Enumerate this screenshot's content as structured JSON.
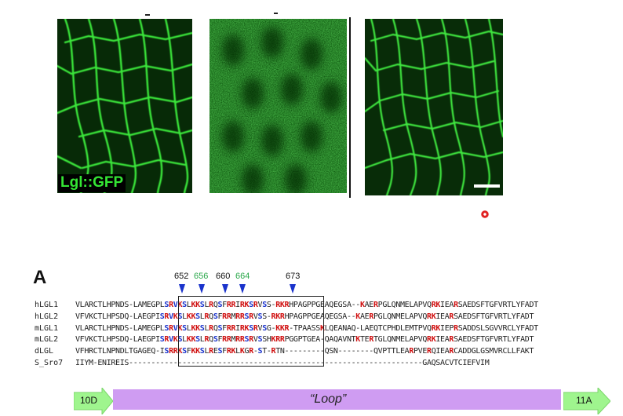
{
  "figure": {
    "panel_label": "Lgl::GFP",
    "section_letter": "A",
    "colors": {
      "gfp": "#30d030",
      "red_residue": "#d01010",
      "blue_residue": "#1a33cc",
      "green_number": "#2aa84a",
      "loop_fill": "#cf9cf2",
      "strand_fill": "#9ff58e"
    }
  },
  "site_numbers": [
    {
      "text": "652",
      "color": "black"
    },
    {
      "text": "656",
      "color": "green"
    },
    {
      "text": "660",
      "color": "black"
    },
    {
      "text": "664",
      "color": "green"
    },
    {
      "text": "673",
      "color": "black"
    }
  ],
  "alignment": [
    {
      "name": "hLGL1",
      "segments": [
        [
          "n",
          "VLARCTLHPNDS-LAMEGPL"
        ],
        [
          "b",
          "S"
        ],
        [
          "r",
          "R"
        ],
        [
          "b",
          "V"
        ],
        [
          "r",
          "K"
        ],
        [
          "b",
          "S"
        ],
        [
          "n",
          "L"
        ],
        [
          "r",
          "KK"
        ],
        [
          "b",
          "S"
        ],
        [
          "n",
          "L"
        ],
        [
          "r",
          "R"
        ],
        [
          "n",
          "Q"
        ],
        [
          "b",
          "S"
        ],
        [
          "n",
          "F"
        ],
        [
          "r",
          "RR"
        ],
        [
          "n",
          "I"
        ],
        [
          "r",
          "RK"
        ],
        [
          "b",
          "S"
        ],
        [
          "r",
          "R"
        ],
        [
          "n",
          "V"
        ],
        [
          "b",
          "S"
        ],
        [
          "n",
          "S-"
        ],
        [
          "r",
          "RKR"
        ],
        [
          "n",
          "HPAGPPGEAQEGSA--"
        ],
        [
          "r",
          "K"
        ],
        [
          "n",
          "AE"
        ],
        [
          "r",
          "R"
        ],
        [
          "n",
          "PGLQNMELAPVQ"
        ],
        [
          "r",
          "RK"
        ],
        [
          "n",
          "IEA"
        ],
        [
          "r",
          "R"
        ],
        [
          "n",
          "SAEDSFTGFVRTLYFADT"
        ]
      ]
    },
    {
      "name": "hLGL2",
      "segments": [
        [
          "n",
          "VFVKCTLHPSDQ-LAEGPI"
        ],
        [
          "b",
          "S"
        ],
        [
          "r",
          "R"
        ],
        [
          "b",
          "V"
        ],
        [
          "r",
          "K"
        ],
        [
          "b",
          "S"
        ],
        [
          "n",
          "L"
        ],
        [
          "r",
          "KK"
        ],
        [
          "b",
          "S"
        ],
        [
          "n",
          "L"
        ],
        [
          "r",
          "R"
        ],
        [
          "n",
          "Q"
        ],
        [
          "b",
          "S"
        ],
        [
          "n",
          "F"
        ],
        [
          "r",
          "RR"
        ],
        [
          "n",
          "M"
        ],
        [
          "r",
          "RR"
        ],
        [
          "b",
          "S"
        ],
        [
          "r",
          "R"
        ],
        [
          "n",
          "V"
        ],
        [
          "b",
          "S"
        ],
        [
          "n",
          "S-"
        ],
        [
          "r",
          "RKR"
        ],
        [
          "n",
          "HPAGPPGEAQEGSA--"
        ],
        [
          "r",
          "K"
        ],
        [
          "n",
          "AE"
        ],
        [
          "r",
          "R"
        ],
        [
          "n",
          "PGLQNMELAPVQ"
        ],
        [
          "r",
          "RK"
        ],
        [
          "n",
          "IEA"
        ],
        [
          "r",
          "R"
        ],
        [
          "n",
          "SAEDSFTGFVRTLYFADT"
        ]
      ]
    },
    {
      "name": "mLGL1",
      "segments": [
        [
          "n",
          "VLARCTLHPNDS-LAMEGPL"
        ],
        [
          "b",
          "S"
        ],
        [
          "r",
          "R"
        ],
        [
          "b",
          "V"
        ],
        [
          "r",
          "K"
        ],
        [
          "b",
          "S"
        ],
        [
          "n",
          "L"
        ],
        [
          "r",
          "KK"
        ],
        [
          "b",
          "S"
        ],
        [
          "n",
          "L"
        ],
        [
          "r",
          "R"
        ],
        [
          "n",
          "Q"
        ],
        [
          "b",
          "S"
        ],
        [
          "n",
          "F"
        ],
        [
          "r",
          "RR"
        ],
        [
          "n",
          "I"
        ],
        [
          "r",
          "RK"
        ],
        [
          "b",
          "S"
        ],
        [
          "r",
          "R"
        ],
        [
          "n",
          "V"
        ],
        [
          "b",
          "S"
        ],
        [
          "n",
          "G-"
        ],
        [
          "r",
          "KKR"
        ],
        [
          "n",
          "-TPAASS"
        ],
        [
          "r",
          "K"
        ],
        [
          "n",
          "LQEANAQ-LAEQTCPHDLEMTPVQ"
        ],
        [
          "r",
          "RK"
        ],
        [
          "n",
          "IEP"
        ],
        [
          "r",
          "R"
        ],
        [
          "n",
          "SADDSLSGVVRCLYFADT"
        ]
      ]
    },
    {
      "name": "mLGL2",
      "segments": [
        [
          "n",
          "VFVKCTLHPSDQ-LAEGPI"
        ],
        [
          "b",
          "S"
        ],
        [
          "r",
          "R"
        ],
        [
          "b",
          "V"
        ],
        [
          "r",
          "K"
        ],
        [
          "b",
          "S"
        ],
        [
          "n",
          "L"
        ],
        [
          "r",
          "KK"
        ],
        [
          "b",
          "S"
        ],
        [
          "n",
          "L"
        ],
        [
          "r",
          "R"
        ],
        [
          "n",
          "Q"
        ],
        [
          "b",
          "S"
        ],
        [
          "n",
          "F"
        ],
        [
          "r",
          "RR"
        ],
        [
          "n",
          "M"
        ],
        [
          "r",
          "RR"
        ],
        [
          "b",
          "S"
        ],
        [
          "r",
          "R"
        ],
        [
          "n",
          "V"
        ],
        [
          "b",
          "S"
        ],
        [
          "n",
          "SH"
        ],
        [
          "r",
          "KRR"
        ],
        [
          "n",
          "PGGPTGEA-QAQAVNT"
        ],
        [
          "r",
          "K"
        ],
        [
          "n",
          "TE"
        ],
        [
          "r",
          "R"
        ],
        [
          "n",
          "TGLQNMELAPVQ"
        ],
        [
          "r",
          "RK"
        ],
        [
          "n",
          "IEA"
        ],
        [
          "r",
          "R"
        ],
        [
          "n",
          "SAEDSFTGFVRTLYFADT"
        ]
      ]
    },
    {
      "name": "dLGL",
      "segments": [
        [
          "n",
          "VFHRCTLNPNDLTGAGEQ-I"
        ],
        [
          "b",
          "S"
        ],
        [
          "r",
          "RRK"
        ],
        [
          "b",
          "S"
        ],
        [
          "n",
          "F"
        ],
        [
          "r",
          "KK"
        ],
        [
          "b",
          "S"
        ],
        [
          "n",
          "L"
        ],
        [
          "r",
          "R"
        ],
        [
          "n",
          "E"
        ],
        [
          "b",
          "S"
        ],
        [
          "n",
          "F"
        ],
        [
          "r",
          "RK"
        ],
        [
          "n",
          "L"
        ],
        [
          "r",
          "K"
        ],
        [
          "n",
          "G"
        ],
        [
          "r",
          "R"
        ],
        [
          "n",
          "-"
        ],
        [
          "b",
          "S"
        ],
        [
          "n",
          "T-"
        ],
        [
          "r",
          "R"
        ],
        [
          "n",
          "TN---------QSN--------QVPTTLEA"
        ],
        [
          "r",
          "R"
        ],
        [
          "n",
          "PVE"
        ],
        [
          "r",
          "R"
        ],
        [
          "n",
          "QIEA"
        ],
        [
          "r",
          "R"
        ],
        [
          "n",
          "CADDGLGSMVRCLLFAKT"
        ]
      ]
    },
    {
      "name": "S_Sro7",
      "segments": [
        [
          "n",
          "IIYM-ENIREIS------------------------------------------------------------------GAQSACVTCIEFVIM"
        ]
      ]
    }
  ],
  "structure": {
    "strand_left": "10D",
    "loop_label": "“Loop”",
    "strand_right": "11A"
  }
}
